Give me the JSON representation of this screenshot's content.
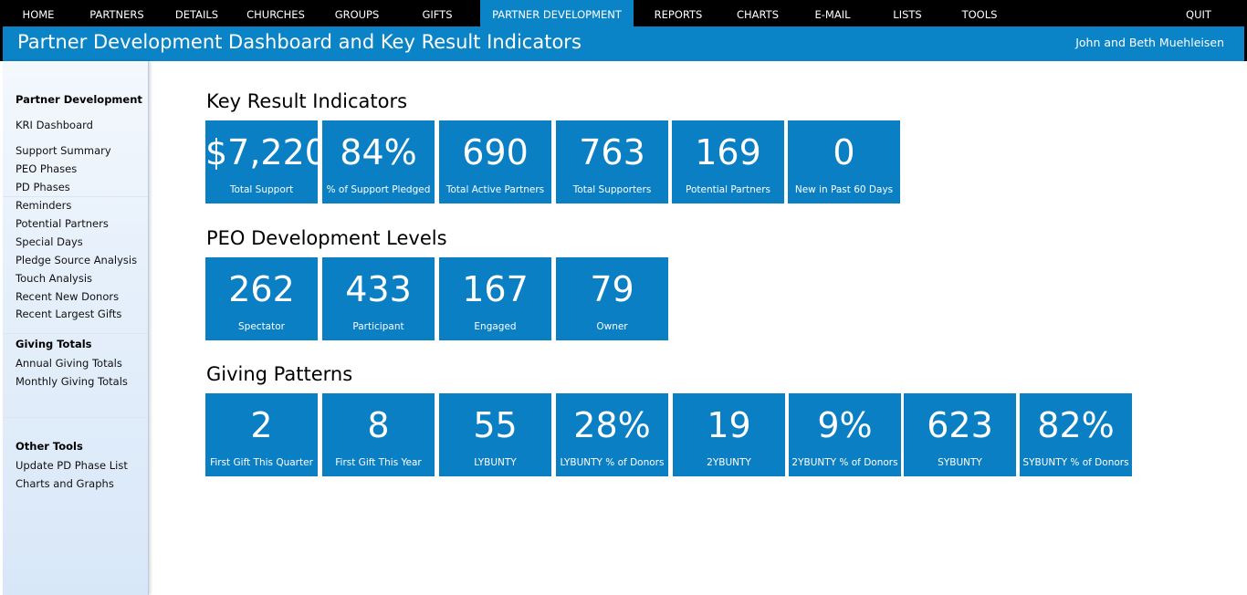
{
  "nav": {
    "items": [
      {
        "label": "HOME",
        "active": false
      },
      {
        "label": "PARTNERS",
        "active": false
      },
      {
        "label": "DETAILS",
        "active": false
      },
      {
        "label": "CHURCHES",
        "active": false
      },
      {
        "label": "GROUPS",
        "active": false
      },
      {
        "label": "GIFTS",
        "active": false
      },
      {
        "label": "PARTNER DEVELOPMENT",
        "active": true
      },
      {
        "label": "REPORTS",
        "active": false
      },
      {
        "label": "CHARTS",
        "active": false
      },
      {
        "label": "E-MAIL",
        "active": false
      },
      {
        "label": "LISTS",
        "active": false
      },
      {
        "label": "TOOLS",
        "active": false
      },
      {
        "label": "QUIT",
        "active": false
      }
    ]
  },
  "header": {
    "title": "Partner Development Dashboard and Key Result Indicators",
    "user": "John and Beth Muehleisen"
  },
  "sidebar": {
    "pd_heading": "Partner Development",
    "kri_link": "KRI Dashboard",
    "pd_links": [
      "Support Summary",
      "PEO Phases",
      "PD Phases",
      "Reminders",
      "Potential Partners",
      "Special Days",
      "Pledge Source Analysis",
      "Touch Analysis",
      "Recent New Donors",
      "Recent Largest Gifts"
    ],
    "giving_heading": "Giving Totals",
    "giving_links": [
      "Annual Giving Totals",
      "Monthly Giving Totals"
    ],
    "other_heading": "Other Tools",
    "other_links": [
      "Update PD Phase List",
      "Charts and Graphs"
    ]
  },
  "sections": {
    "kri": {
      "title": "Key Result Indicators",
      "tiles": [
        {
          "value": "$7,220",
          "label": "Total Support"
        },
        {
          "value": "84%",
          "label": "% of Support Pledged"
        },
        {
          "value": "690",
          "label": "Total Active Partners"
        },
        {
          "value": "763",
          "label": "Total Supporters"
        },
        {
          "value": "169",
          "label": "Potential Partners"
        },
        {
          "value": "0",
          "label": "New in Past 60 Days"
        }
      ]
    },
    "peo": {
      "title": "PEO Development Levels",
      "tiles": [
        {
          "value": "262",
          "label": "Spectator"
        },
        {
          "value": "433",
          "label": "Participant"
        },
        {
          "value": "167",
          "label": "Engaged"
        },
        {
          "value": "79",
          "label": "Owner"
        }
      ]
    },
    "giving": {
      "title": "Giving Patterns",
      "tiles": [
        {
          "value": "2",
          "label": "First Gift This Quarter"
        },
        {
          "value": "8",
          "label": "First Gift This Year"
        },
        {
          "value": "55",
          "label": "LYBUNTY"
        },
        {
          "value": "28%",
          "label": "LYBUNTY % of Donors"
        },
        {
          "value": "19",
          "label": "2YBUNTY"
        },
        {
          "value": "9%",
          "label": "2YBUNTY % of Donors"
        },
        {
          "value": "623",
          "label": "SYBUNTY"
        },
        {
          "value": "82%",
          "label": "SYBUNTY % of Donors"
        }
      ]
    }
  },
  "colors": {
    "accent": "#0a84c6",
    "tile": "#0a7fc4",
    "nav_bg": "#000000"
  }
}
